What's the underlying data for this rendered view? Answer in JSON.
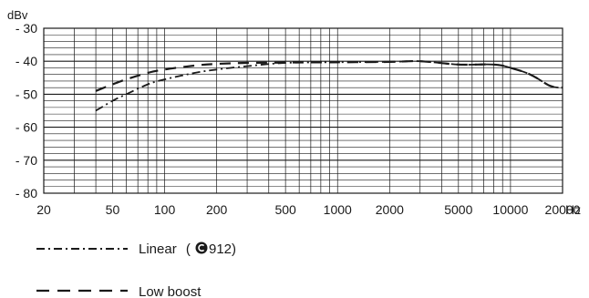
{
  "chart_data": {
    "type": "line",
    "title": "",
    "xlabel": "",
    "ylabel": "",
    "y_unit": "dBv",
    "x_unit": "Hz",
    "x_scale": "log",
    "xlim": [
      20,
      20000
    ],
    "ylim": [
      -80,
      -30
    ],
    "grid": true,
    "x_ticks": [
      20,
      50,
      100,
      200,
      500,
      1000,
      2000,
      5000,
      10000,
      20000
    ],
    "x_tick_labels": [
      "20",
      "50",
      "100",
      "200",
      "500",
      "1000",
      "2000",
      "5000",
      "10000",
      "20000"
    ],
    "y_ticks": [
      -30,
      -40,
      -50,
      -60,
      -70,
      -80
    ],
    "y_tick_labels": [
      "- 30",
      "- 40",
      "- 50",
      "- 60",
      "- 70",
      "- 80"
    ],
    "legend_position": "bottom-left",
    "series": [
      {
        "name": "Linear",
        "legend_suffix": "912",
        "style": "dash-dot",
        "color": "#1a1a1a",
        "x": [
          40,
          50,
          60,
          80,
          100,
          150,
          200,
          300,
          500,
          1000,
          2000,
          3000,
          5000,
          8000,
          10000,
          13000,
          17000,
          20000
        ],
        "y": [
          -55,
          -52,
          -50,
          -47,
          -45.5,
          -43.5,
          -42.5,
          -41.5,
          -40.5,
          -40.3,
          -40.2,
          -40,
          -41,
          -41,
          -42,
          -44,
          -47.5,
          -48
        ]
      },
      {
        "name": "Low boost",
        "style": "dashed",
        "color": "#1a1a1a",
        "x": [
          40,
          50,
          60,
          80,
          100,
          150,
          200,
          300,
          500,
          1000,
          2000,
          3000,
          5000,
          8000,
          10000,
          13000,
          17000,
          20000
        ],
        "y": [
          -49,
          -47,
          -45.5,
          -43.5,
          -42.5,
          -41.3,
          -40.8,
          -40.5,
          -40.4,
          -40.3,
          -40.2,
          -40,
          -41,
          -41,
          -42,
          -44,
          -47.5,
          -48
        ]
      }
    ]
  },
  "legend": {
    "linear_label": "Linear",
    "linear_paren_open": "(",
    "linear_paren_close": ")",
    "linear_number": "912",
    "low_boost_label": "Low boost"
  }
}
